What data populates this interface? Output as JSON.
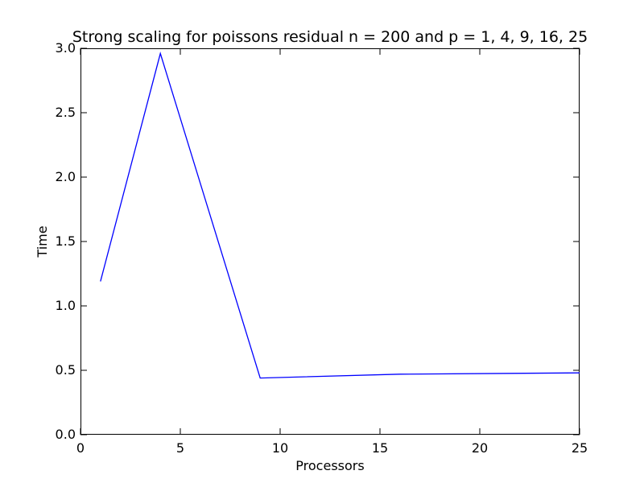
{
  "chart_data": {
    "type": "line",
    "title": "Strong scaling for poissons residual n = 200 and p = 1, 4, 9, 16, 25",
    "xlabel": "Processors",
    "ylabel": "Time",
    "xlim": [
      0,
      25
    ],
    "ylim": [
      0.0,
      3.0
    ],
    "xticks": [
      0,
      5,
      10,
      15,
      20,
      25
    ],
    "xtick_labels": [
      "0",
      "5",
      "10",
      "15",
      "20",
      "25"
    ],
    "yticks": [
      0.0,
      0.5,
      1.0,
      1.5,
      2.0,
      2.5,
      3.0
    ],
    "ytick_labels": [
      "0.0",
      "0.5",
      "1.0",
      "1.5",
      "2.0",
      "2.5",
      "3.0"
    ],
    "grid": false,
    "legend": "none",
    "series": [
      {
        "color": "#0000ff",
        "x": [
          1,
          4,
          9,
          16,
          25
        ],
        "y": [
          1.19,
          2.96,
          0.44,
          0.47,
          0.48
        ]
      }
    ]
  }
}
